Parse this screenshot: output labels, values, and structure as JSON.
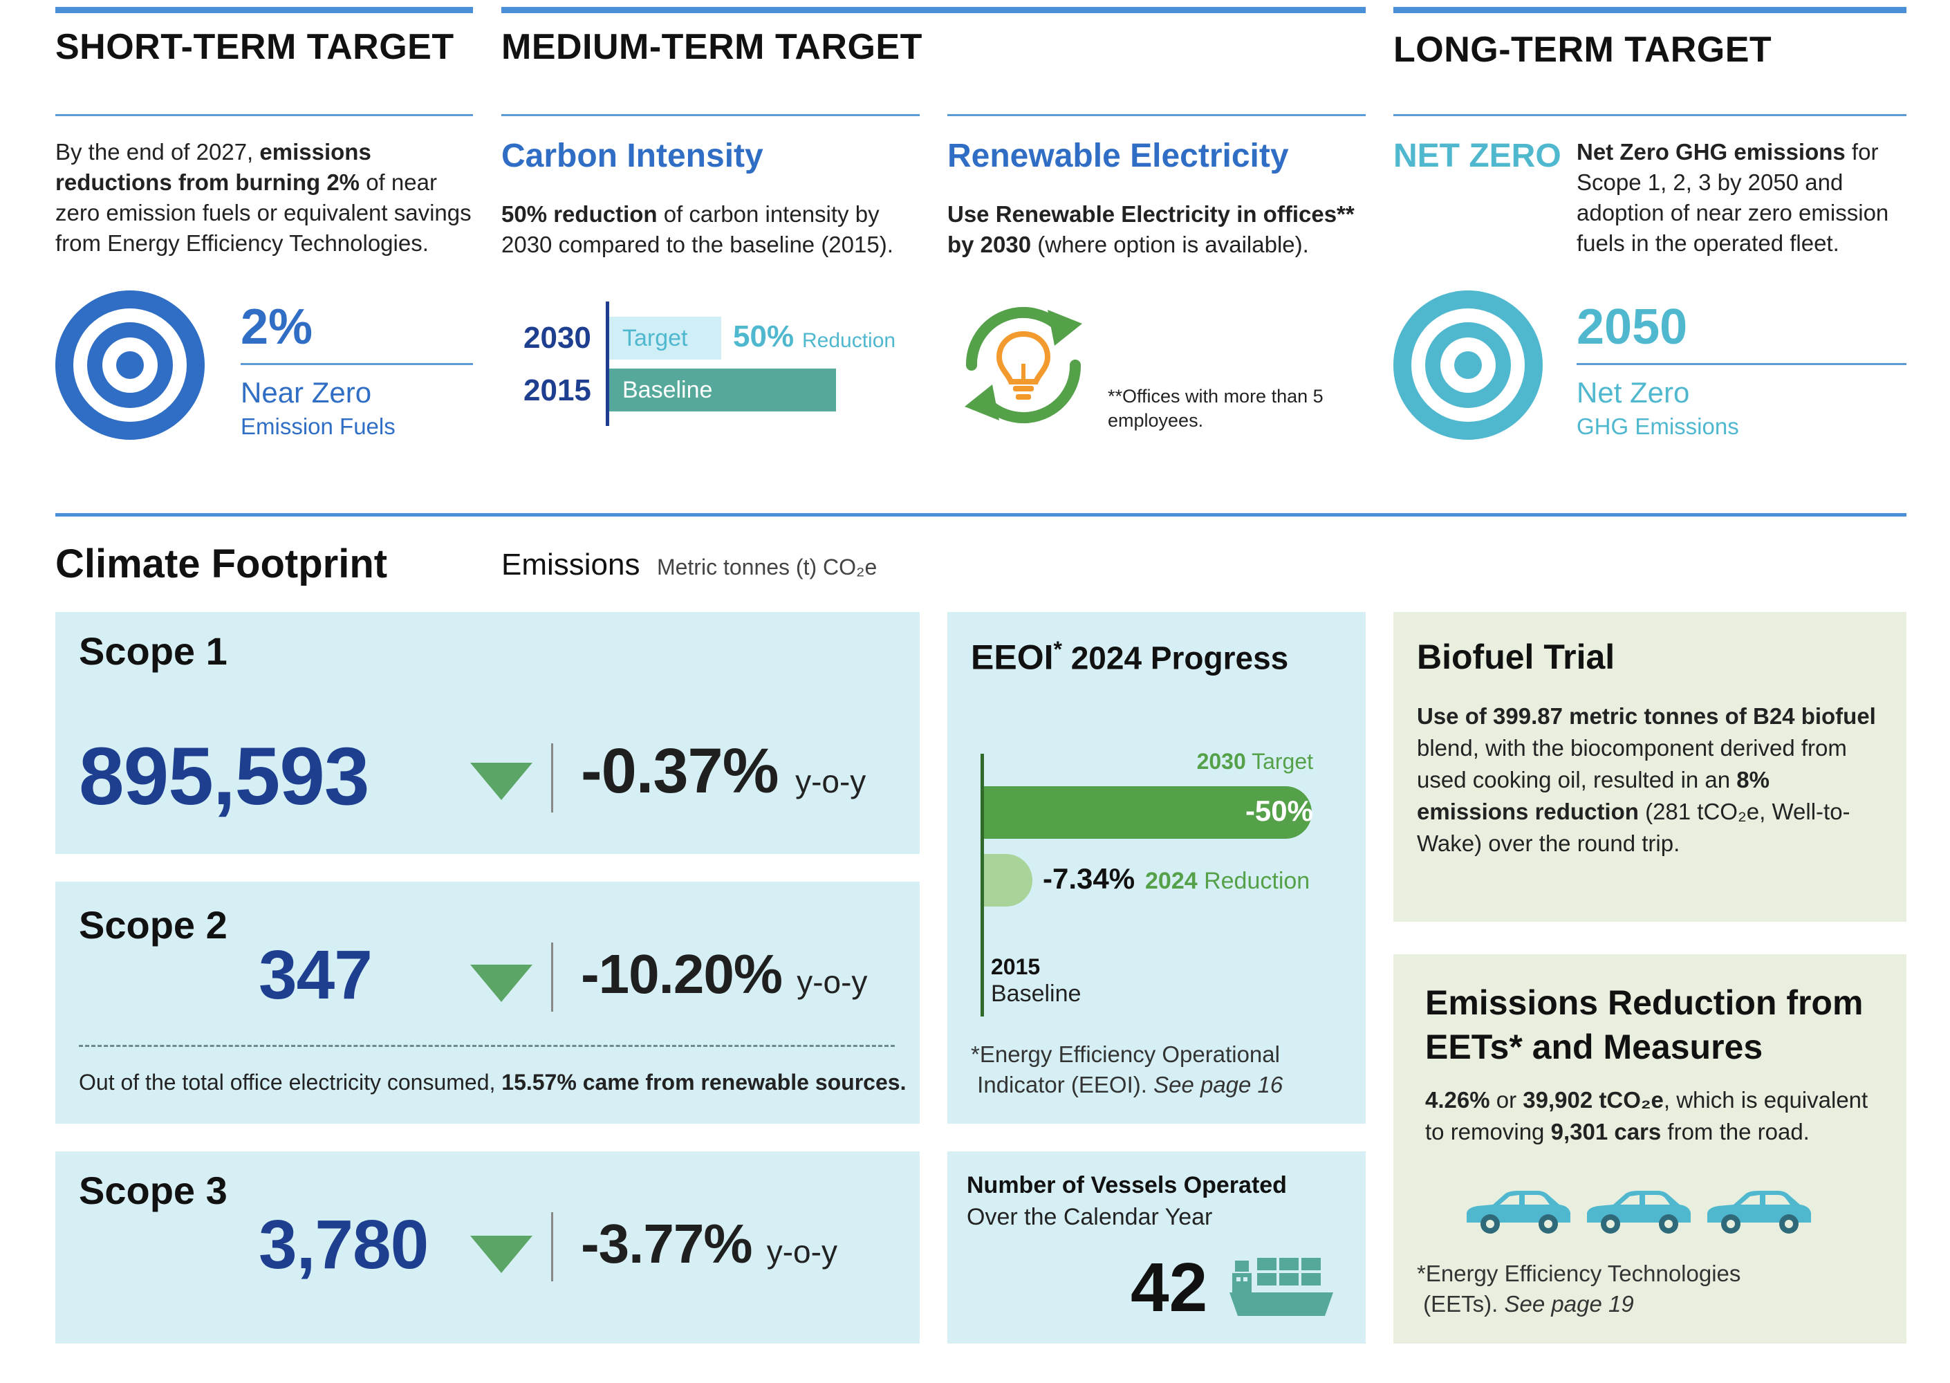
{
  "colors": {
    "accent_blue": "#2f6ec4",
    "dark_blue": "#1e3f8f",
    "teal": "#4fb8cf",
    "green": "#55a14a",
    "light_green": "#a8d49a",
    "panel_blue": "#d6eff4",
    "panel_green": "#e8efdf",
    "teal_bar": "#55a89a"
  },
  "short_term": {
    "header": "SHORT-TERM TARGET",
    "text_pre": "By the end of 2027, ",
    "text_bold": "emissions reductions from burning 2%",
    "text_post": " of near zero emission fuels or equivalent savings from Energy Efficiency Technologies.",
    "icon": "target-icon",
    "value": "2%",
    "label": "Near Zero",
    "sublabel": "Emission Fuels"
  },
  "medium_term": {
    "header": "MEDIUM-TERM TARGET",
    "carbon": {
      "title": "Carbon Intensity",
      "text_bold": "50% reduction",
      "text_post": " of carbon intensity by 2030 compared to the baseline (2015).",
      "year_target": "2030",
      "year_base": "2015",
      "target_label": "Target",
      "base_label": "Baseline",
      "reduction_value": "50%",
      "reduction_label": "Reduction"
    },
    "renewable": {
      "title": "Renewable Electricity",
      "text_bold1": "Use Renewable Electricity in offices**",
      "text_bold2": "by 2030",
      "text_post": " (where option is available).",
      "icon": "renewable-lightbulb-icon",
      "footnote": "**Offices with more than 5 employees."
    }
  },
  "long_term": {
    "header": "LONG-TERM TARGET",
    "net_zero_title": "NET ZERO",
    "text_bold": "Net Zero GHG emissions",
    "text_post": " for Scope 1, 2, 3 by 2050 and adoption of near zero emission fuels in the operated fleet.",
    "icon": "target-icon",
    "value": "2050",
    "label": "Net Zero",
    "sublabel": "GHG Emissions"
  },
  "climate": {
    "title": "Climate Footprint",
    "emissions_label": "Emissions",
    "emissions_unit": "Metric tonnes (t) CO₂e",
    "scopes": [
      {
        "title": "Scope 1",
        "value": "895,593",
        "change": "-0.37%",
        "unit": "y-o-y"
      },
      {
        "title": "Scope 2",
        "value": "347",
        "change": "-10.20%",
        "unit": "y-o-y",
        "note_pre": "Out of the total office electricity consumed, ",
        "note_bold": "15.57% came from renewable sources."
      },
      {
        "title": "Scope 3",
        "value": "3,780",
        "change": "-3.77%",
        "unit": "y-o-y"
      }
    ]
  },
  "eeoi": {
    "title": "EEOI",
    "title_star": "*",
    "title_post": " 2024 Progress",
    "target_year": "2030",
    "target_label": "Target",
    "target_value": "-50%",
    "reduction_value": "-7.34%",
    "reduction_year": "2024",
    "reduction_label": "Reduction",
    "baseline_year": "2015",
    "baseline_label": "Baseline",
    "footnote_a": "*Energy Efficiency Operational",
    "footnote_b": "Indicator (EEOI). ",
    "footnote_page": "See page 16",
    "progress": {
      "target_pct": 50,
      "achieved_pct": 7.34
    }
  },
  "vessels": {
    "title_bold": "Number of Vessels Operated",
    "subtitle": "Over the Calendar Year",
    "value": "42",
    "icon": "cargo-ship-icon"
  },
  "biofuel": {
    "title": "Biofuel Trial",
    "bold1": "Use of 399.87 metric tonnes of B24 biofuel",
    "text1": " blend, with the biocomponent derived from used cooking oil, resulted in an ",
    "bold2": "8% emissions reduction",
    "text2": " (281 tCO₂e, Well-to-Wake) over the round trip."
  },
  "eets": {
    "title": "Emissions Reduction from EETs* and Measures",
    "bold1": "4.26%",
    "text1": " or ",
    "bold2": "39,902 tCO₂e",
    "text2": ", which is equivalent to removing ",
    "bold3": "9,301 cars",
    "text3": " from the road.",
    "icon": "car-icon",
    "footnote_a": "*Energy Efficiency Technologies",
    "footnote_b": "(EETs). ",
    "footnote_page": "See page 19"
  }
}
